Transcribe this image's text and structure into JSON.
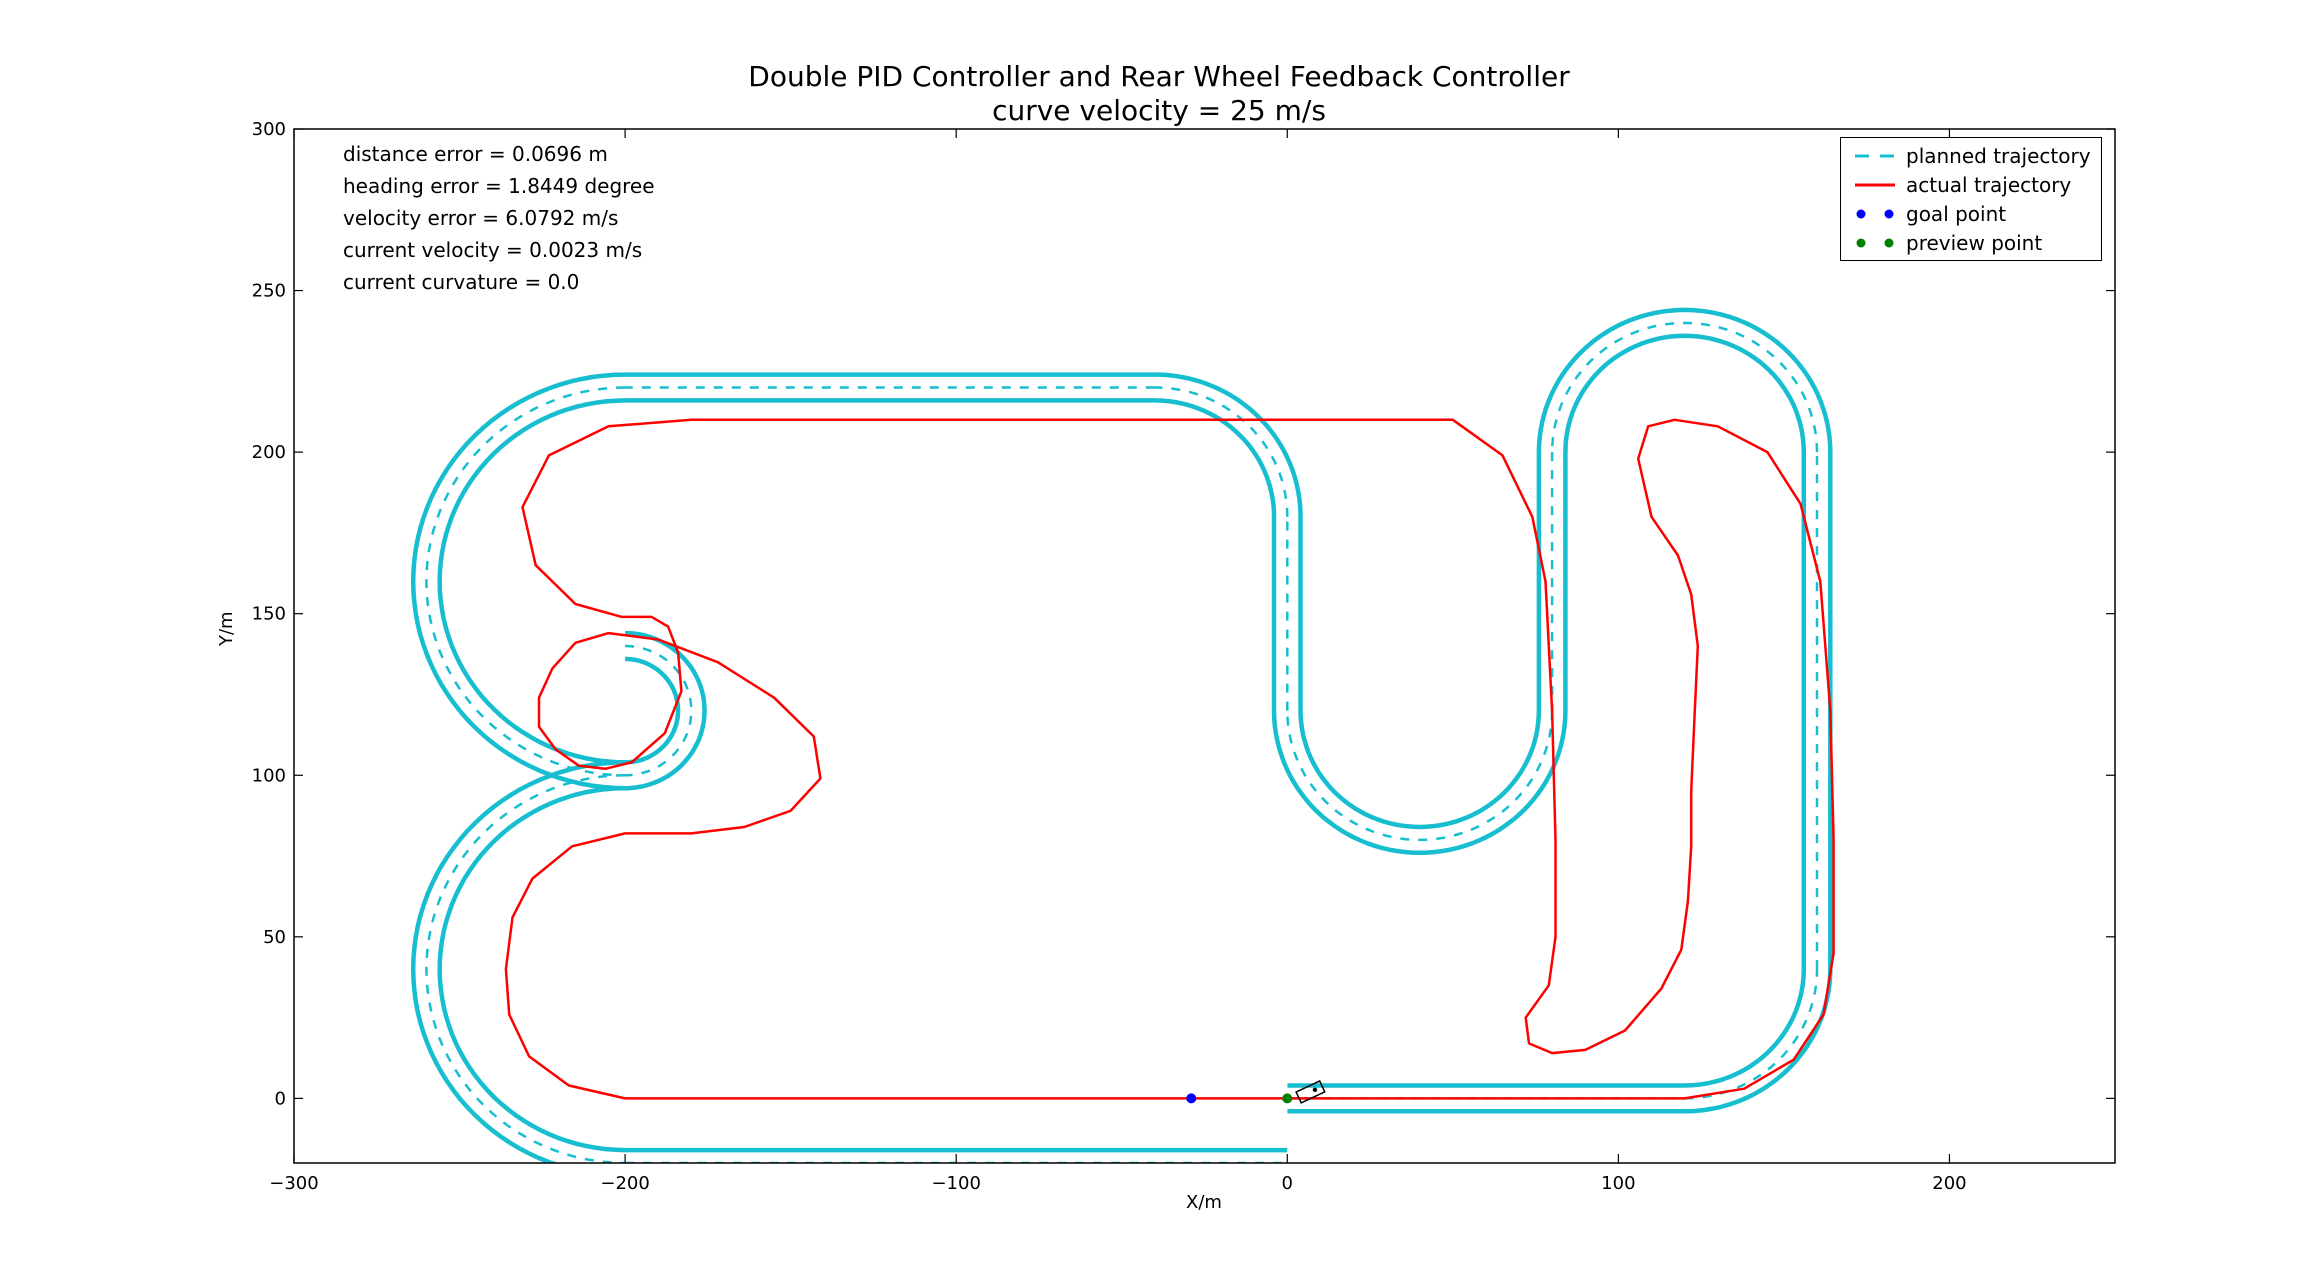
{
  "chart_data": {
    "type": "line",
    "title": "Double PID Controller and Rear Wheel Feedback Controller",
    "subtitle": "curve velocity = 25 m/s",
    "xlabel": "X/m",
    "ylabel": "Y/m",
    "xlim": [
      -300,
      250
    ],
    "ylim": [
      -20,
      300
    ],
    "xticks": [
      -300,
      -200,
      -100,
      0,
      100,
      200
    ],
    "yticks": [
      0,
      50,
      100,
      150,
      200,
      250,
      300
    ],
    "xtick_labels": [
      "−300",
      "−200",
      "−100",
      "0",
      "100",
      "200"
    ],
    "ytick_labels": [
      "0",
      "50",
      "100",
      "150",
      "200",
      "250",
      "300"
    ],
    "grid": false,
    "legend_position": "top-right",
    "annotations": [
      "distance error = 0.0696 m",
      "heading error = 1.8449 degree",
      "velocity error = 6.0792 m/s",
      "current velocity = 0.0023 m/s",
      "current curvature = 0.0"
    ],
    "road": {
      "half_width": 4,
      "color": "#17becf",
      "segments": [
        {
          "kind": "line",
          "from": [
            0,
            0
          ],
          "to": [
            120,
            0
          ]
        },
        {
          "kind": "arc",
          "center": [
            120,
            40
          ],
          "radius": 40,
          "start_deg": -90,
          "end_deg": 0
        },
        {
          "kind": "line",
          "from": [
            160,
            40
          ],
          "to": [
            160,
            200
          ]
        },
        {
          "kind": "arc",
          "center": [
            120,
            200
          ],
          "radius": 40,
          "start_deg": 0,
          "end_deg": 180
        },
        {
          "kind": "line",
          "from": [
            80,
            200
          ],
          "to": [
            80,
            120
          ]
        },
        {
          "kind": "arc",
          "center": [
            40,
            120
          ],
          "radius": 40,
          "start_deg": 0,
          "end_deg": -180
        },
        {
          "kind": "line",
          "from": [
            0,
            120
          ],
          "to": [
            0,
            180
          ]
        },
        {
          "kind": "arc",
          "center": [
            -40,
            180
          ],
          "radius": 40,
          "start_deg": 0,
          "end_deg": 90
        },
        {
          "kind": "line",
          "from": [
            -40,
            220
          ],
          "to": [
            -200,
            220
          ]
        },
        {
          "kind": "arc",
          "center": [
            -200,
            160
          ],
          "radius": 60,
          "start_deg": 90,
          "end_deg": 270
        },
        {
          "kind": "arc",
          "center": [
            -200,
            120
          ],
          "radius": 20,
          "start_deg": 90,
          "end_deg": -90
        },
        {
          "kind": "arc",
          "center": [
            -200,
            40
          ],
          "radius": 60,
          "start_deg": 90,
          "end_deg": 270
        },
        {
          "kind": "line",
          "from": [
            -200,
            -20
          ],
          "to": [
            0,
            -20
          ]
        }
      ]
    },
    "series": [
      {
        "name": "planned trajectory",
        "style": "dashed",
        "color": "#17becf",
        "path": "road-centerline"
      },
      {
        "name": "actual trajectory",
        "style": "solid",
        "color": "#ff0000",
        "x": [
          0,
          60,
          120,
          138,
          153,
          162,
          165,
          165,
          164,
          161,
          155,
          145,
          130,
          117,
          109,
          106,
          110,
          118,
          122,
          124,
          123,
          122,
          122,
          121,
          119,
          113,
          102,
          90,
          80,
          73,
          72,
          79,
          81,
          81,
          80,
          78,
          74,
          65,
          50,
          35,
          20,
          0,
          -30,
          -60,
          -90,
          -120,
          -150,
          -180,
          -205,
          -223,
          -231,
          -227,
          -215,
          -201,
          -192,
          -187,
          -184,
          -183,
          -188,
          -198,
          -206,
          -214,
          -221,
          -226,
          -226,
          -222,
          -215,
          -205,
          -190,
          -172,
          -155,
          -143,
          -141,
          -150,
          -164,
          -180,
          -200,
          -216,
          -228,
          -234,
          -236,
          -235,
          -229,
          -217,
          -200,
          -160,
          -120,
          -80,
          -40,
          0
        ],
        "y": [
          0,
          0,
          0,
          3,
          12,
          26,
          45,
          80,
          120,
          160,
          184,
          200,
          208,
          210,
          208,
          198,
          180,
          168,
          156,
          140,
          118,
          95,
          78,
          61,
          46,
          34,
          21,
          15,
          14,
          17,
          25,
          35,
          50,
          80,
          120,
          160,
          180,
          199,
          210,
          210,
          210,
          210,
          210,
          210,
          210,
          210,
          210,
          210,
          208,
          199,
          183,
          165,
          153,
          149,
          149,
          146,
          138,
          126,
          113,
          104,
          102,
          103,
          108,
          115,
          124,
          133,
          141,
          144,
          142,
          135,
          124,
          112,
          99,
          89,
          84,
          82,
          82,
          78,
          68,
          56,
          40,
          26,
          13,
          4,
          0,
          0,
          0,
          0,
          0,
          0
        ]
      },
      {
        "name": "goal point",
        "style": "point",
        "color": "#0000ff",
        "x": [
          -29
        ],
        "y": [
          0
        ]
      },
      {
        "name": "preview point",
        "style": "point",
        "color": "#008000",
        "x": [
          0
        ],
        "y": [
          0
        ]
      }
    ]
  }
}
